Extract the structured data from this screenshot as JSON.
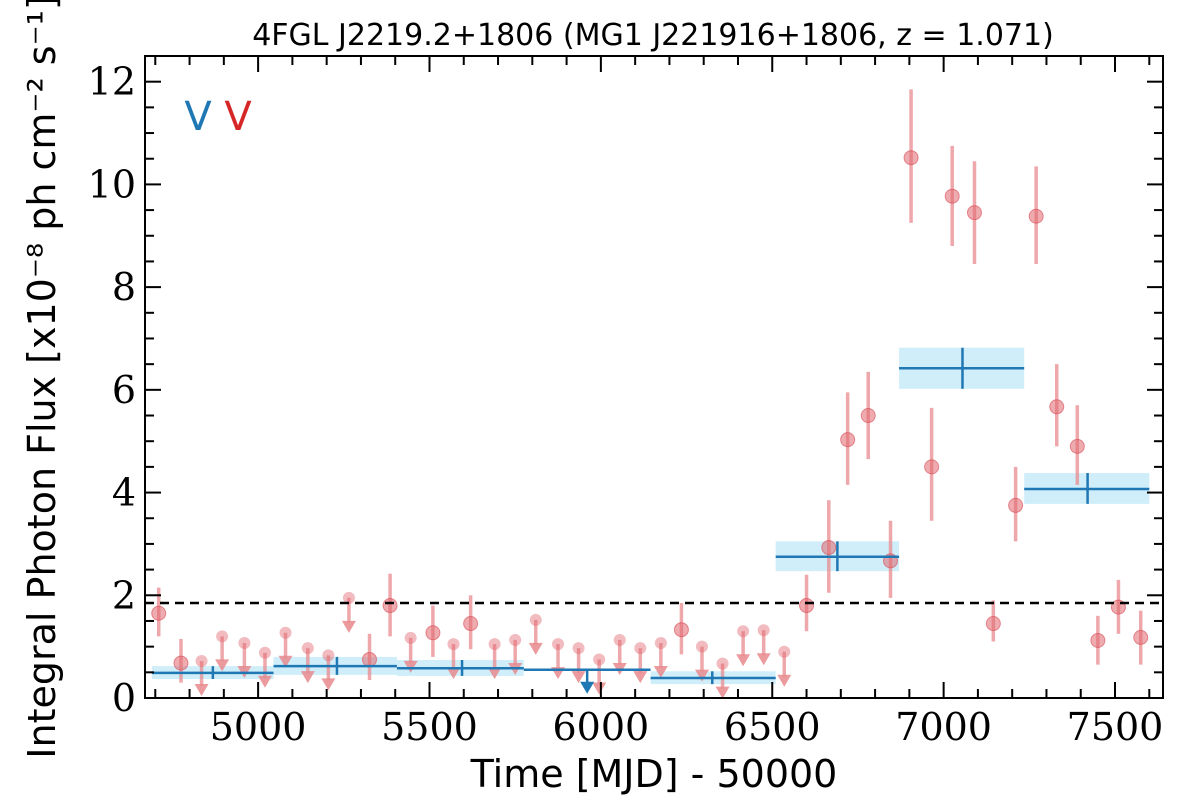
{
  "chart_data": {
    "type": "scatter",
    "title": "4FGL J2219.2+1806 (MG1 J221916+1806, z = 1.071)",
    "xlabel": "Time [MJD] - 50000",
    "ylabel": "Integral Photon Flux [x10⁻⁸ ph cm⁻² s⁻¹]",
    "xlim": [
      4670,
      7640
    ],
    "ylim": [
      0,
      12.5
    ],
    "x_ticks": [
      5000,
      5500,
      6000,
      6500,
      7000,
      7500
    ],
    "x_tick_labels": [
      "5000",
      "5500",
      "6000",
      "6500",
      "7000",
      "7500"
    ],
    "y_ticks": [
      0,
      2,
      4,
      6,
      8,
      10,
      12
    ],
    "y_tick_labels": [
      "0",
      "2",
      "4",
      "6",
      "8",
      "10",
      "12"
    ],
    "reference_line_y": 1.85,
    "legend_marks": [
      {
        "text": "V",
        "color": "#1f77b4"
      },
      {
        "text": "V",
        "color": "#d62728"
      }
    ],
    "colors": {
      "short_bin": "#e88a8d",
      "long_bin": "#1f77b4",
      "long_bin_band": "#cfeefa",
      "reference_line": "#000000"
    },
    "series": [
      {
        "bin": "short",
        "detections": [
          {
            "x": 4710,
            "y": 1.65,
            "lo": 1.2,
            "hi": 2.15
          },
          {
            "x": 4775,
            "y": 0.68,
            "lo": 0.3,
            "hi": 1.15
          },
          {
            "x": 5325,
            "y": 0.75,
            "lo": 0.35,
            "hi": 1.25
          },
          {
            "x": 5385,
            "y": 1.8,
            "lo": 1.2,
            "hi": 2.42
          },
          {
            "x": 5510,
            "y": 1.27,
            "lo": 0.8,
            "hi": 1.8
          },
          {
            "x": 5620,
            "y": 1.45,
            "lo": 0.95,
            "hi": 2.0
          },
          {
            "x": 6235,
            "y": 1.33,
            "lo": 0.85,
            "hi": 1.85
          },
          {
            "x": 6600,
            "y": 1.8,
            "lo": 1.3,
            "hi": 2.4
          },
          {
            "x": 6665,
            "y": 2.93,
            "lo": 2.05,
            "hi": 3.85
          },
          {
            "x": 6720,
            "y": 5.03,
            "lo": 4.15,
            "hi": 5.95
          },
          {
            "x": 6780,
            "y": 5.5,
            "lo": 4.65,
            "hi": 6.35
          },
          {
            "x": 6845,
            "y": 2.67,
            "lo": 1.95,
            "hi": 3.45
          },
          {
            "x": 6905,
            "y": 10.52,
            "lo": 9.25,
            "hi": 11.85
          },
          {
            "x": 6965,
            "y": 4.5,
            "lo": 3.45,
            "hi": 5.65
          },
          {
            "x": 7025,
            "y": 9.77,
            "lo": 8.8,
            "hi": 10.75
          },
          {
            "x": 7090,
            "y": 9.45,
            "lo": 8.45,
            "hi": 10.45
          },
          {
            "x": 7145,
            "y": 1.45,
            "lo": 1.1,
            "hi": 1.9
          },
          {
            "x": 7210,
            "y": 3.75,
            "lo": 3.05,
            "hi": 4.5
          },
          {
            "x": 7270,
            "y": 9.38,
            "lo": 8.45,
            "hi": 10.35
          },
          {
            "x": 7330,
            "y": 5.67,
            "lo": 4.9,
            "hi": 6.5
          },
          {
            "x": 7390,
            "y": 4.9,
            "lo": 4.15,
            "hi": 5.7
          },
          {
            "x": 7450,
            "y": 1.12,
            "lo": 0.65,
            "hi": 1.6
          },
          {
            "x": 7510,
            "y": 1.77,
            "lo": 1.25,
            "hi": 2.3
          },
          {
            "x": 7575,
            "y": 1.18,
            "lo": 0.65,
            "hi": 1.7
          }
        ],
        "upper_limits": [
          {
            "x": 4835,
            "y": 0.72
          },
          {
            "x": 4895,
            "y": 1.2
          },
          {
            "x": 4960,
            "y": 1.07
          },
          {
            "x": 5020,
            "y": 0.88
          },
          {
            "x": 5080,
            "y": 1.27
          },
          {
            "x": 5145,
            "y": 0.97
          },
          {
            "x": 5205,
            "y": 0.83
          },
          {
            "x": 5265,
            "y": 1.95
          },
          {
            "x": 5445,
            "y": 1.17
          },
          {
            "x": 5570,
            "y": 1.05
          },
          {
            "x": 5690,
            "y": 1.05
          },
          {
            "x": 5750,
            "y": 1.13
          },
          {
            "x": 5810,
            "y": 1.52
          },
          {
            "x": 5875,
            "y": 1.05
          },
          {
            "x": 5935,
            "y": 0.97
          },
          {
            "x": 5995,
            "y": 0.75
          },
          {
            "x": 6055,
            "y": 1.13
          },
          {
            "x": 6115,
            "y": 0.97
          },
          {
            "x": 6175,
            "y": 1.07
          },
          {
            "x": 6295,
            "y": 1.0
          },
          {
            "x": 6355,
            "y": 0.67
          },
          {
            "x": 6415,
            "y": 1.3
          },
          {
            "x": 6475,
            "y": 1.32
          },
          {
            "x": 6535,
            "y": 0.9
          }
        ]
      },
      {
        "bin": "long",
        "detections": [
          {
            "x0": 4690,
            "x1": 5045,
            "xc": 4868,
            "y": 0.49,
            "lo": 0.37,
            "hi": 0.62
          },
          {
            "x0": 5045,
            "x1": 5405,
            "xc": 5230,
            "y": 0.62,
            "lo": 0.45,
            "hi": 0.8
          },
          {
            "x0": 5405,
            "x1": 5775,
            "xc": 5595,
            "y": 0.58,
            "lo": 0.43,
            "hi": 0.74
          },
          {
            "x0": 6145,
            "x1": 6510,
            "xc": 6325,
            "y": 0.39,
            "lo": 0.27,
            "hi": 0.52
          },
          {
            "x0": 6510,
            "x1": 6870,
            "xc": 6690,
            "y": 2.75,
            "lo": 2.47,
            "hi": 3.05
          },
          {
            "x0": 6870,
            "x1": 7235,
            "xc": 7055,
            "y": 6.42,
            "lo": 6.02,
            "hi": 6.82
          },
          {
            "x0": 7235,
            "x1": 7600,
            "xc": 7420,
            "y": 4.07,
            "lo": 3.78,
            "hi": 4.38
          }
        ],
        "upper_limits": [
          {
            "x0": 5775,
            "x1": 6145,
            "xc": 5960,
            "y": 0.55
          }
        ]
      }
    ]
  }
}
